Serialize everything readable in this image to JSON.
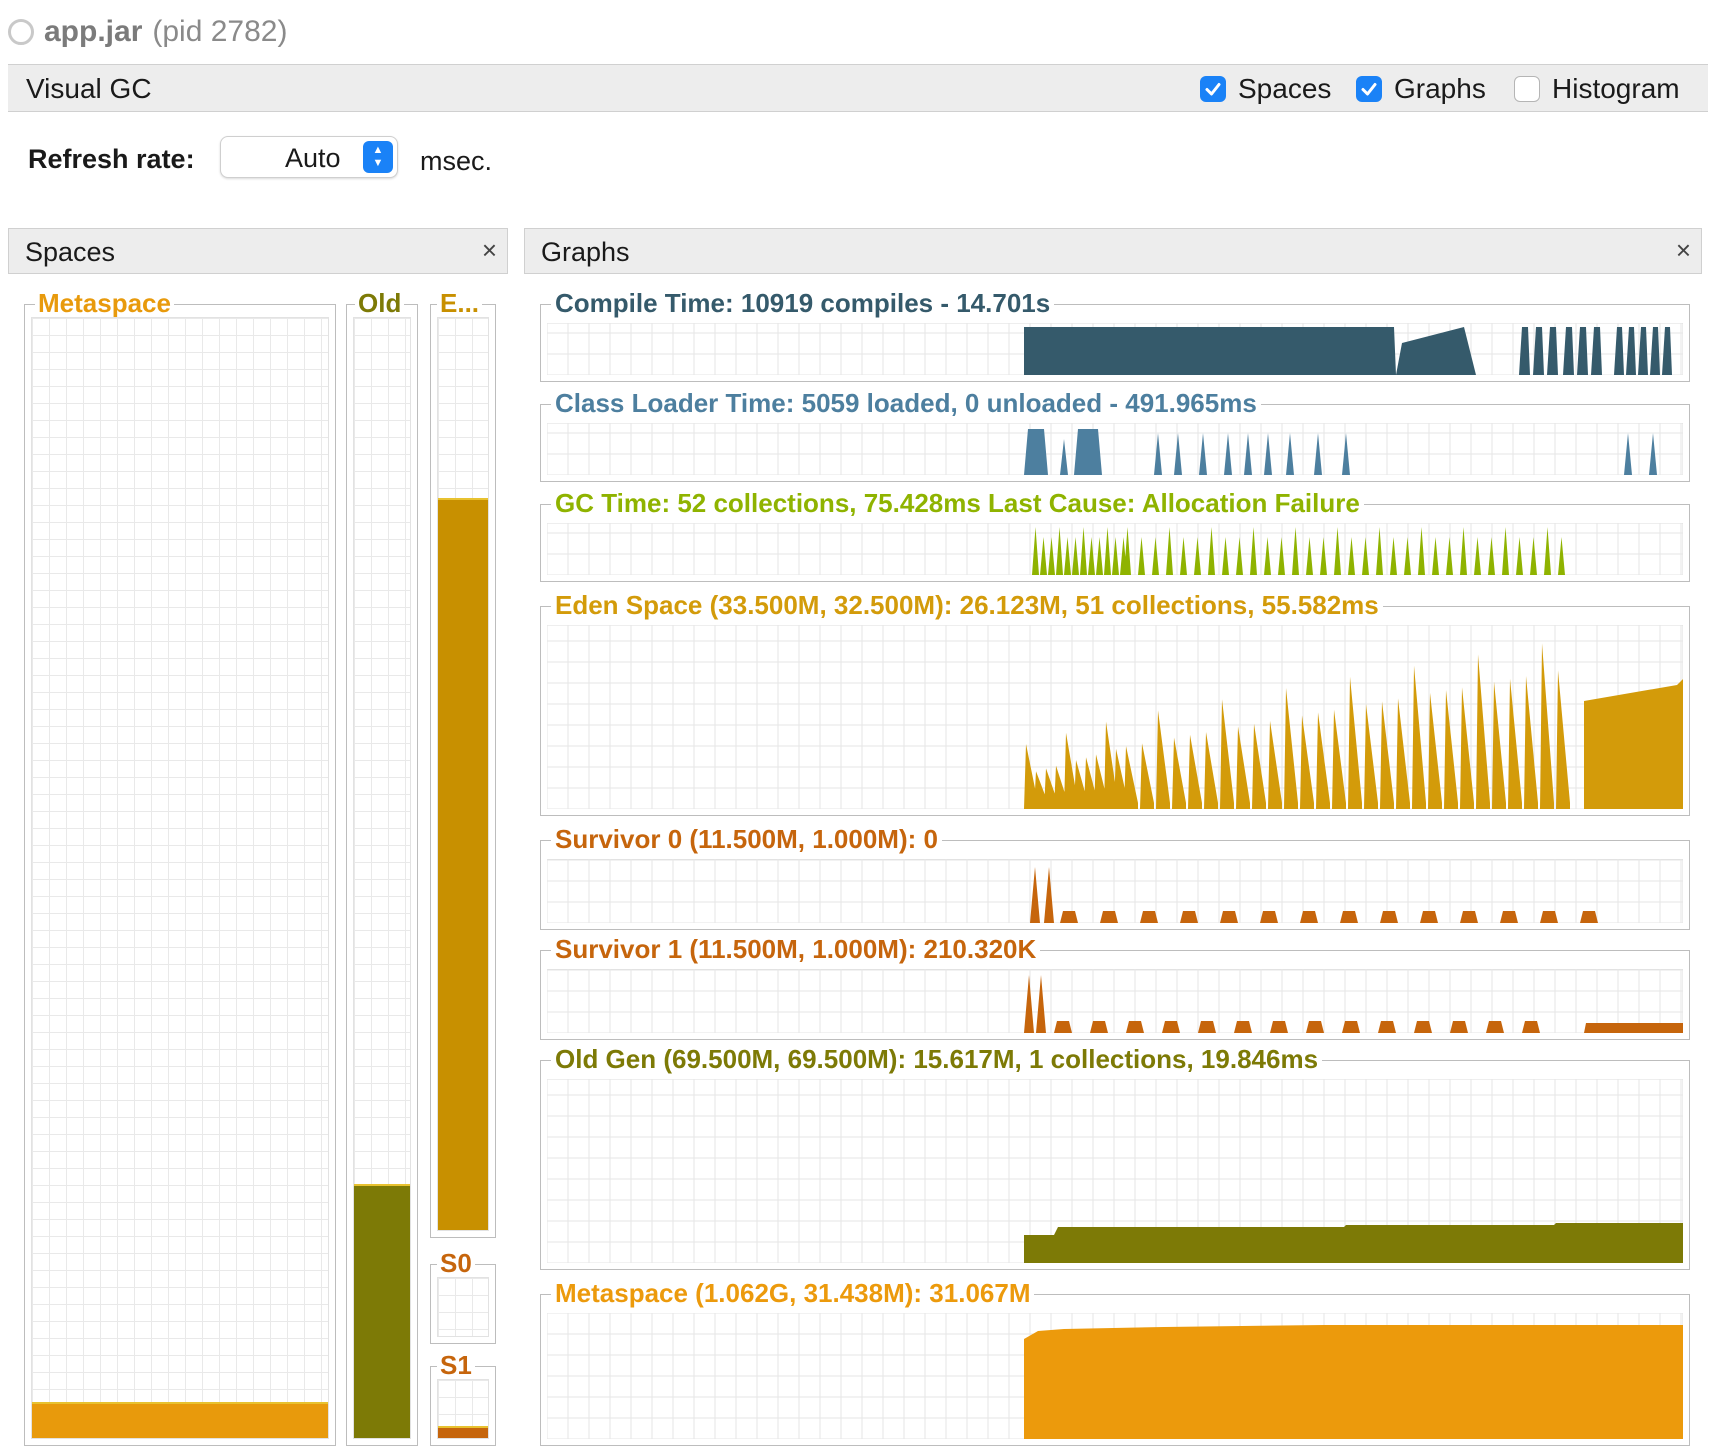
{
  "app": {
    "name": "app.jar",
    "pid": "(pid 2782)"
  },
  "visual_gc": {
    "title": "Visual GC",
    "checkboxes": [
      {
        "label": "Spaces",
        "checked": true
      },
      {
        "label": "Graphs",
        "checked": true
      },
      {
        "label": "Histogram",
        "checked": false
      }
    ]
  },
  "refresh": {
    "label": "Refresh rate:",
    "value": "Auto",
    "unit": "msec."
  },
  "spaces_panel": {
    "title": "Spaces",
    "close": "×",
    "spaces": [
      {
        "label": "Metaspace",
        "color": "#e89a0c",
        "fill": 0.03
      },
      {
        "label": "Old",
        "color": "#7d7a06",
        "fill": 0.225
      },
      {
        "label": "E...",
        "color": "#c89000",
        "fill": 0.8
      },
      {
        "label": "S0",
        "color": "#c6650c",
        "fill": 0.0
      },
      {
        "label": "S1",
        "color": "#c6650c",
        "fill": 0.18
      }
    ]
  },
  "graphs_panel": {
    "title": "Graphs",
    "close": "×",
    "graphs": [
      {
        "label": "Compile Time: 10919 compiles - 14.701s",
        "color": "#355a6b"
      },
      {
        "label": "Class Loader Time: 5059 loaded, 0 unloaded - 491.965ms",
        "color": "#4d7f9f"
      },
      {
        "label": "GC Time: 52 collections, 75.428ms Last Cause: Allocation Failure",
        "color": "#8fb300"
      },
      {
        "label": "Eden Space (33.500M, 32.500M): 26.123M, 51 collections, 55.582ms",
        "color": "#d39b0a"
      },
      {
        "label": "Survivor 0 (11.500M, 1.000M): 0",
        "color": "#c6650c"
      },
      {
        "label": "Survivor 1 (11.500M, 1.000M): 210.320K",
        "color": "#c6650c"
      },
      {
        "label": "Old Gen (69.500M, 69.500M): 15.617M, 1 collections, 19.846ms",
        "color": "#7d7a06"
      },
      {
        "label": "Metaspace (1.062G, 31.438M): 31.067M",
        "color": "#ec9a0c"
      }
    ]
  }
}
